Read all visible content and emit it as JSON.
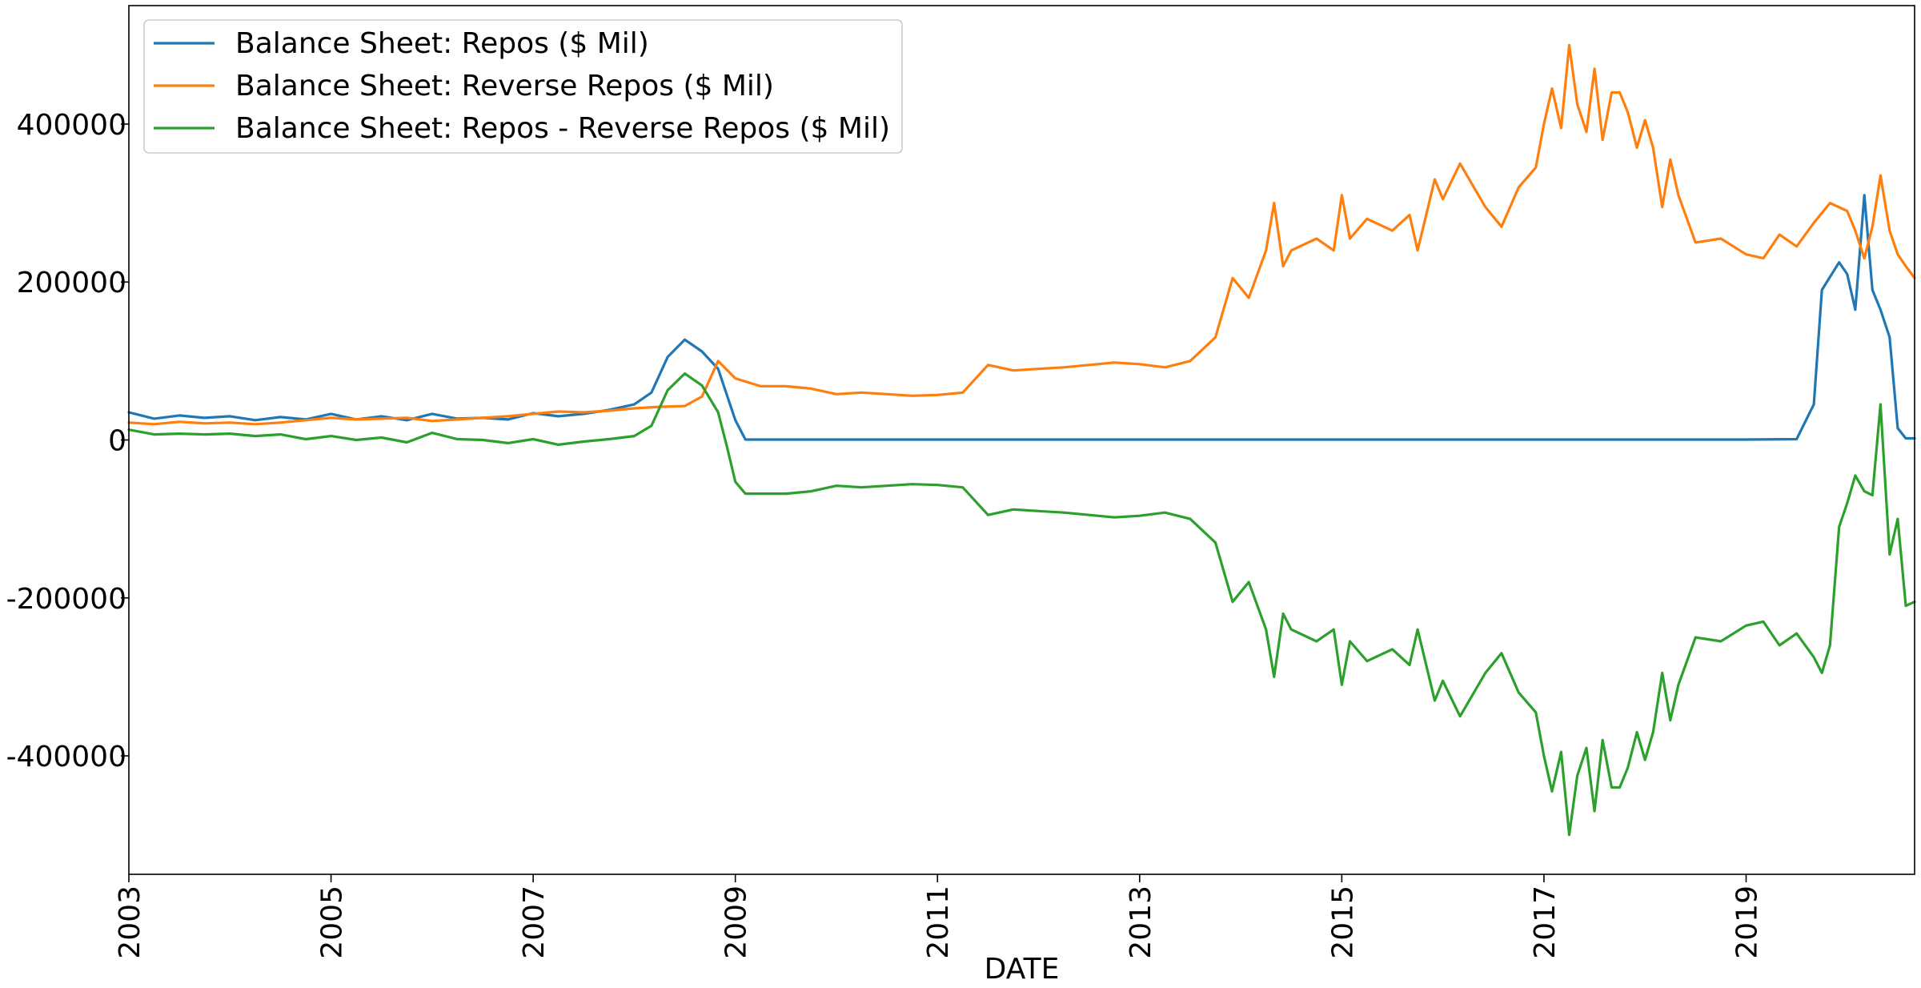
{
  "chart_data": {
    "type": "line",
    "title": "",
    "xlabel": "DATE",
    "ylabel": "",
    "xlim": [
      2003.0,
      2020.667
    ],
    "ylim": [
      -550000,
      550000
    ],
    "x_ticks": [
      "2003",
      "2005",
      "2007",
      "2009",
      "2011",
      "2013",
      "2015",
      "2017",
      "2019"
    ],
    "y_ticks": [
      400000,
      200000,
      0,
      -200000,
      -400000
    ],
    "y_tick_labels": [
      "400000",
      "200000",
      "0",
      "-200000",
      "-400000"
    ],
    "grid": false,
    "legend_position": "upper-left",
    "series": [
      {
        "name": "Balance Sheet: Repos ($ Mil)",
        "color": "#1f77b4",
        "points": [
          [
            2003.0,
            35000
          ],
          [
            2003.25,
            27000
          ],
          [
            2003.5,
            31000
          ],
          [
            2003.75,
            28000
          ],
          [
            2004.0,
            30000
          ],
          [
            2004.25,
            25000
          ],
          [
            2004.5,
            29000
          ],
          [
            2004.75,
            26000
          ],
          [
            2005.0,
            33000
          ],
          [
            2005.25,
            26000
          ],
          [
            2005.5,
            30000
          ],
          [
            2005.75,
            25000
          ],
          [
            2006.0,
            33000
          ],
          [
            2006.25,
            27000
          ],
          [
            2006.5,
            28000
          ],
          [
            2006.75,
            26000
          ],
          [
            2007.0,
            34000
          ],
          [
            2007.25,
            30000
          ],
          [
            2007.5,
            33000
          ],
          [
            2007.75,
            38000
          ],
          [
            2008.0,
            45000
          ],
          [
            2008.17,
            60000
          ],
          [
            2008.33,
            105000
          ],
          [
            2008.5,
            127000
          ],
          [
            2008.67,
            112000
          ],
          [
            2008.83,
            90000
          ],
          [
            2009.0,
            25000
          ],
          [
            2009.1,
            500
          ],
          [
            2010.0,
            500
          ],
          [
            2011.0,
            500
          ],
          [
            2012.0,
            500
          ],
          [
            2013.0,
            500
          ],
          [
            2014.0,
            500
          ],
          [
            2015.0,
            500
          ],
          [
            2016.0,
            500
          ],
          [
            2017.0,
            500
          ],
          [
            2018.0,
            500
          ],
          [
            2019.0,
            500
          ],
          [
            2019.5,
            1000
          ],
          [
            2019.67,
            45000
          ],
          [
            2019.75,
            190000
          ],
          [
            2019.92,
            225000
          ],
          [
            2020.0,
            210000
          ],
          [
            2020.08,
            165000
          ],
          [
            2020.17,
            310000
          ],
          [
            2020.25,
            190000
          ],
          [
            2020.33,
            165000
          ],
          [
            2020.42,
            130000
          ],
          [
            2020.5,
            15000
          ],
          [
            2020.58,
            2000
          ],
          [
            2020.667,
            2000
          ]
        ]
      },
      {
        "name": "Balance Sheet: Reverse Repos ($ Mil)",
        "color": "#ff7f0e",
        "points": [
          [
            2003.0,
            22000
          ],
          [
            2003.25,
            20000
          ],
          [
            2003.5,
            23000
          ],
          [
            2003.75,
            21000
          ],
          [
            2004.0,
            22000
          ],
          [
            2004.25,
            20000
          ],
          [
            2004.5,
            22000
          ],
          [
            2004.75,
            25000
          ],
          [
            2005.0,
            28000
          ],
          [
            2005.25,
            26000
          ],
          [
            2005.5,
            27000
          ],
          [
            2005.75,
            28000
          ],
          [
            2006.0,
            24000
          ],
          [
            2006.25,
            26000
          ],
          [
            2006.5,
            28000
          ],
          [
            2006.75,
            30000
          ],
          [
            2007.0,
            33000
          ],
          [
            2007.25,
            36000
          ],
          [
            2007.5,
            35000
          ],
          [
            2007.75,
            37000
          ],
          [
            2008.0,
            40000
          ],
          [
            2008.25,
            42000
          ],
          [
            2008.5,
            43000
          ],
          [
            2008.67,
            55000
          ],
          [
            2008.83,
            100000
          ],
          [
            2009.0,
            78000
          ],
          [
            2009.25,
            68000
          ],
          [
            2009.5,
            68000
          ],
          [
            2009.75,
            65000
          ],
          [
            2010.0,
            58000
          ],
          [
            2010.25,
            60000
          ],
          [
            2010.5,
            58000
          ],
          [
            2010.75,
            56000
          ],
          [
            2011.0,
            57000
          ],
          [
            2011.25,
            60000
          ],
          [
            2011.5,
            95000
          ],
          [
            2011.75,
            88000
          ],
          [
            2012.0,
            90000
          ],
          [
            2012.25,
            92000
          ],
          [
            2012.5,
            95000
          ],
          [
            2012.75,
            98000
          ],
          [
            2013.0,
            96000
          ],
          [
            2013.25,
            92000
          ],
          [
            2013.5,
            100000
          ],
          [
            2013.75,
            130000
          ],
          [
            2013.92,
            205000
          ],
          [
            2014.08,
            180000
          ],
          [
            2014.25,
            240000
          ],
          [
            2014.33,
            300000
          ],
          [
            2014.42,
            220000
          ],
          [
            2014.5,
            240000
          ],
          [
            2014.75,
            255000
          ],
          [
            2014.92,
            240000
          ],
          [
            2015.0,
            310000
          ],
          [
            2015.08,
            255000
          ],
          [
            2015.25,
            280000
          ],
          [
            2015.5,
            265000
          ],
          [
            2015.67,
            285000
          ],
          [
            2015.75,
            240000
          ],
          [
            2015.92,
            330000
          ],
          [
            2016.0,
            305000
          ],
          [
            2016.17,
            350000
          ],
          [
            2016.42,
            295000
          ],
          [
            2016.58,
            270000
          ],
          [
            2016.75,
            320000
          ],
          [
            2016.92,
            345000
          ],
          [
            2017.0,
            400000
          ],
          [
            2017.08,
            445000
          ],
          [
            2017.17,
            395000
          ],
          [
            2017.25,
            500000
          ],
          [
            2017.33,
            425000
          ],
          [
            2017.42,
            390000
          ],
          [
            2017.5,
            470000
          ],
          [
            2017.58,
            380000
          ],
          [
            2017.67,
            440000
          ],
          [
            2017.75,
            440000
          ],
          [
            2017.83,
            415000
          ],
          [
            2017.92,
            370000
          ],
          [
            2018.0,
            405000
          ],
          [
            2018.08,
            370000
          ],
          [
            2018.17,
            295000
          ],
          [
            2018.25,
            355000
          ],
          [
            2018.33,
            310000
          ],
          [
            2018.5,
            250000
          ],
          [
            2018.75,
            255000
          ],
          [
            2019.0,
            235000
          ],
          [
            2019.17,
            230000
          ],
          [
            2019.33,
            260000
          ],
          [
            2019.5,
            245000
          ],
          [
            2019.67,
            275000
          ],
          [
            2019.83,
            300000
          ],
          [
            2020.0,
            290000
          ],
          [
            2020.08,
            265000
          ],
          [
            2020.17,
            230000
          ],
          [
            2020.25,
            270000
          ],
          [
            2020.33,
            335000
          ],
          [
            2020.42,
            265000
          ],
          [
            2020.5,
            235000
          ],
          [
            2020.58,
            220000
          ],
          [
            2020.667,
            205000
          ]
        ]
      },
      {
        "name": "Balance Sheet: Repos - Reverse Repos ($ Mil)",
        "color": "#2ca02c",
        "points": [
          [
            2003.0,
            13000
          ],
          [
            2003.25,
            7000
          ],
          [
            2003.5,
            8000
          ],
          [
            2003.75,
            7000
          ],
          [
            2004.0,
            8000
          ],
          [
            2004.25,
            5000
          ],
          [
            2004.5,
            7000
          ],
          [
            2004.75,
            1000
          ],
          [
            2005.0,
            5000
          ],
          [
            2005.25,
            0
          ],
          [
            2005.5,
            3000
          ],
          [
            2005.75,
            -3000
          ],
          [
            2006.0,
            9000
          ],
          [
            2006.25,
            1000
          ],
          [
            2006.5,
            0
          ],
          [
            2006.75,
            -4000
          ],
          [
            2007.0,
            1000
          ],
          [
            2007.25,
            -6000
          ],
          [
            2007.5,
            -2000
          ],
          [
            2007.75,
            1000
          ],
          [
            2008.0,
            5000
          ],
          [
            2008.17,
            18000
          ],
          [
            2008.33,
            63000
          ],
          [
            2008.5,
            84000
          ],
          [
            2008.67,
            69000
          ],
          [
            2008.83,
            35000
          ],
          [
            2008.92,
            -10000
          ],
          [
            2009.0,
            -53000
          ],
          [
            2009.1,
            -68000
          ],
          [
            2009.5,
            -68000
          ],
          [
            2009.75,
            -65000
          ],
          [
            2010.0,
            -58000
          ],
          [
            2010.25,
            -60000
          ],
          [
            2010.5,
            -58000
          ],
          [
            2010.75,
            -56000
          ],
          [
            2011.0,
            -57000
          ],
          [
            2011.25,
            -60000
          ],
          [
            2011.5,
            -95000
          ],
          [
            2011.75,
            -88000
          ],
          [
            2012.0,
            -90000
          ],
          [
            2012.25,
            -92000
          ],
          [
            2012.5,
            -95000
          ],
          [
            2012.75,
            -98000
          ],
          [
            2013.0,
            -96000
          ],
          [
            2013.25,
            -92000
          ],
          [
            2013.5,
            -100000
          ],
          [
            2013.75,
            -130000
          ],
          [
            2013.92,
            -205000
          ],
          [
            2014.08,
            -180000
          ],
          [
            2014.25,
            -240000
          ],
          [
            2014.33,
            -300000
          ],
          [
            2014.42,
            -220000
          ],
          [
            2014.5,
            -240000
          ],
          [
            2014.75,
            -255000
          ],
          [
            2014.92,
            -240000
          ],
          [
            2015.0,
            -310000
          ],
          [
            2015.08,
            -255000
          ],
          [
            2015.25,
            -280000
          ],
          [
            2015.5,
            -265000
          ],
          [
            2015.67,
            -285000
          ],
          [
            2015.75,
            -240000
          ],
          [
            2015.92,
            -330000
          ],
          [
            2016.0,
            -305000
          ],
          [
            2016.17,
            -350000
          ],
          [
            2016.42,
            -295000
          ],
          [
            2016.58,
            -270000
          ],
          [
            2016.75,
            -320000
          ],
          [
            2016.92,
            -345000
          ],
          [
            2017.0,
            -400000
          ],
          [
            2017.08,
            -445000
          ],
          [
            2017.17,
            -395000
          ],
          [
            2017.25,
            -500000
          ],
          [
            2017.33,
            -425000
          ],
          [
            2017.42,
            -390000
          ],
          [
            2017.5,
            -470000
          ],
          [
            2017.58,
            -380000
          ],
          [
            2017.67,
            -440000
          ],
          [
            2017.75,
            -440000
          ],
          [
            2017.83,
            -415000
          ],
          [
            2017.92,
            -370000
          ],
          [
            2018.0,
            -405000
          ],
          [
            2018.08,
            -370000
          ],
          [
            2018.17,
            -295000
          ],
          [
            2018.25,
            -355000
          ],
          [
            2018.33,
            -310000
          ],
          [
            2018.5,
            -250000
          ],
          [
            2018.75,
            -255000
          ],
          [
            2019.0,
            -235000
          ],
          [
            2019.17,
            -230000
          ],
          [
            2019.33,
            -260000
          ],
          [
            2019.5,
            -245000
          ],
          [
            2019.67,
            -275000
          ],
          [
            2019.75,
            -295000
          ],
          [
            2019.83,
            -260000
          ],
          [
            2019.92,
            -110000
          ],
          [
            2020.0,
            -80000
          ],
          [
            2020.08,
            -45000
          ],
          [
            2020.17,
            -65000
          ],
          [
            2020.25,
            -70000
          ],
          [
            2020.33,
            45000
          ],
          [
            2020.42,
            -145000
          ],
          [
            2020.5,
            -100000
          ],
          [
            2020.58,
            -210000
          ],
          [
            2020.667,
            -205000
          ]
        ]
      }
    ]
  }
}
